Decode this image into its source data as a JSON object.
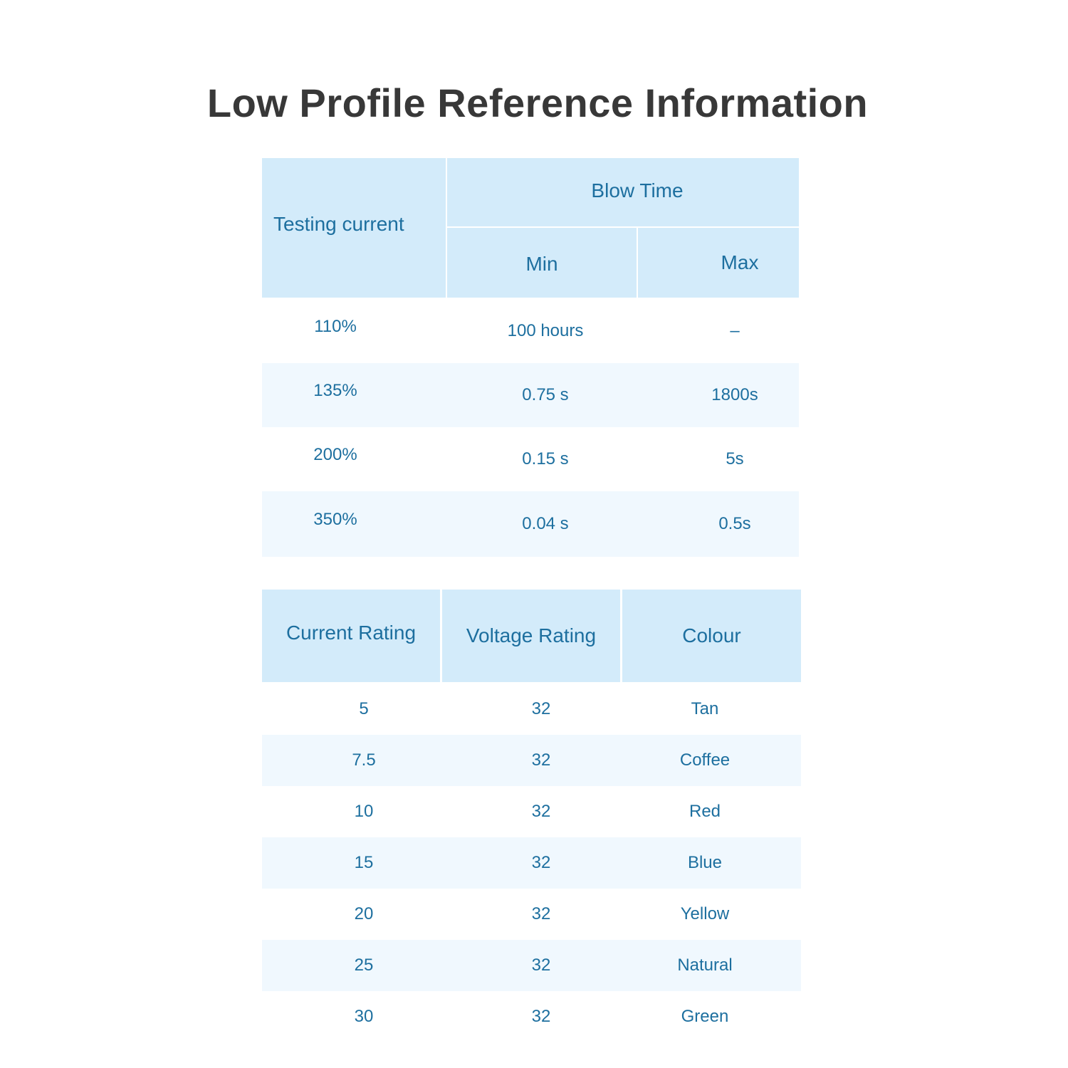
{
  "title": "Low Profile Reference Information",
  "blow_time_table": {
    "headers": {
      "testing_current": "Testing current",
      "blow_time": "Blow Time",
      "min": "Min",
      "max": "Max"
    },
    "rows": [
      {
        "current": "110%",
        "min": "100 hours",
        "max": "–"
      },
      {
        "current": "135%",
        "min": "0.75 s",
        "max": "1800s"
      },
      {
        "current": "200%",
        "min": "0.15 s",
        "max": "5s"
      },
      {
        "current": "350%",
        "min": "0.04 s",
        "max": "0.5s"
      }
    ]
  },
  "rating_table": {
    "headers": {
      "current_rating": "Current Rating",
      "voltage_rating": "Voltage Rating",
      "colour": "Colour"
    },
    "rows": [
      {
        "current": "5",
        "voltage": "32",
        "colour": "Tan"
      },
      {
        "current": "7.5",
        "voltage": "32",
        "colour": "Coffee"
      },
      {
        "current": "10",
        "voltage": "32",
        "colour": "Red"
      },
      {
        "current": "15",
        "voltage": "32",
        "colour": "Blue"
      },
      {
        "current": "20",
        "voltage": "32",
        "colour": "Yellow"
      },
      {
        "current": "25",
        "voltage": "32",
        "colour": "Natural"
      },
      {
        "current": "30",
        "voltage": "32",
        "colour": "Green"
      }
    ]
  },
  "colors": {
    "header_bg": "#d3ebfa",
    "text": "#1d6f9f",
    "alt_row": "#f0f8fe",
    "title": "#383838"
  }
}
